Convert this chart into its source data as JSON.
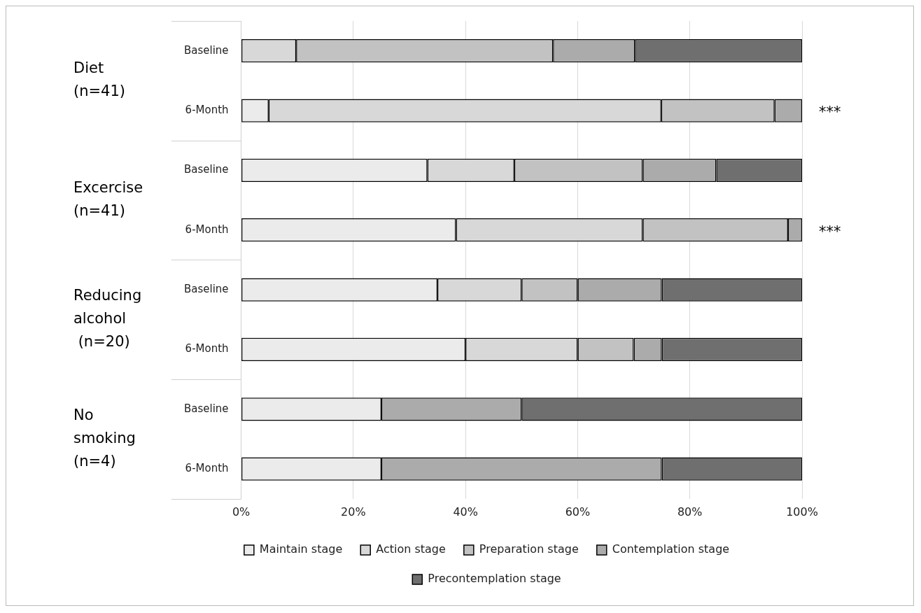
{
  "chart_data": {
    "type": "bar",
    "orientation": "horizontal",
    "stacked": true,
    "categories": [
      "Baseline",
      "6-Month",
      "Baseline",
      "6-Month",
      "Baseline",
      "6-Month",
      "Baseline",
      "6-Month"
    ],
    "series": [
      {
        "name": "Maintain stage",
        "color": "#ebebeb",
        "values": [
          0,
          4.9,
          33.2,
          38.3,
          35,
          40,
          25,
          25
        ]
      },
      {
        "name": "Action stage",
        "color": "#d8d8d8",
        "values": [
          9.8,
          70,
          15.5,
          33.3,
          15,
          20,
          0,
          0
        ]
      },
      {
        "name": "Preparation stage",
        "color": "#c2c2c2",
        "values": [
          45.8,
          20.2,
          22.9,
          25.9,
          10,
          10,
          0,
          0
        ]
      },
      {
        "name": "Contemplation stage",
        "color": "#ababab",
        "values": [
          14.6,
          4.9,
          13.1,
          2.5,
          15,
          5,
          25,
          50
        ]
      },
      {
        "name": "Precontemplation stage",
        "color": "#6f6f6f",
        "values": [
          29.8,
          0,
          15.3,
          0,
          25,
          25,
          50,
          25
        ]
      }
    ],
    "xlim": [
      0,
      100
    ],
    "xticks": [
      {
        "value": 0,
        "label": "0%"
      },
      {
        "value": 20,
        "label": "20%"
      },
      {
        "value": 40,
        "label": "40%"
      },
      {
        "value": 60,
        "label": "60%"
      },
      {
        "value": 80,
        "label": "80%"
      },
      {
        "value": 100,
        "label": "100%"
      }
    ],
    "grid": "x",
    "legend": "bottom",
    "annotations": [
      "Diet\n(n=41)",
      "Excercise\n(n=41)",
      "Reducing\nalcohol\n (n=20)",
      "No\nsmoking\n(n=4)",
      "***",
      "***"
    ]
  }
}
